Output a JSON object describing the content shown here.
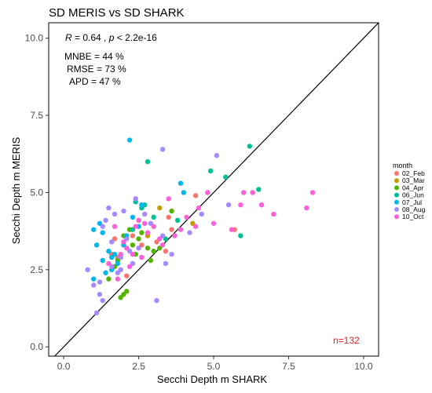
{
  "chart_data": {
    "type": "scatter",
    "title": "SD MERIS vs SD SHARK",
    "xlabel": "Secchi Depth m SHARK",
    "ylabel": "Secchi Depth m MERIS",
    "xlim": [
      -0.5,
      10.5
    ],
    "ylim": [
      -0.3,
      10.5
    ],
    "x_ticks": [
      0.0,
      2.5,
      5.0,
      7.5,
      10.0
    ],
    "x_tick_labels": [
      "0.0",
      "2.5",
      "5.0",
      "7.5",
      "10.0"
    ],
    "y_ticks": [
      0.0,
      2.5,
      5.0,
      7.5,
      10.0
    ],
    "y_tick_labels": [
      "0.0",
      "2.5",
      "5.0",
      "7.5",
      "10.0"
    ],
    "grid": false,
    "identity_line": true,
    "annotations": {
      "r_prefix": "R",
      "r_suffix": " = 0.64 , ",
      "p_prefix": "p",
      "p_suffix": " < 2.2e-16",
      "mnbe": "MNBE = 44 %",
      "rmse": "RMSE = 73 %",
      "apd": "APD = 47 %",
      "n": "n=132",
      "n_color": "#e41a1c"
    },
    "legend": {
      "title": "month",
      "placement": "right"
    },
    "series": [
      {
        "name": "02_Feb",
        "color": "#F8766D",
        "points": [
          [
            1.6,
            3.0
          ],
          [
            1.8,
            2.9
          ],
          [
            2.1,
            2.3
          ],
          [
            2.6,
            3.3
          ],
          [
            3.1,
            3.4
          ],
          [
            3.5,
            4.2
          ],
          [
            3.6,
            3.8
          ],
          [
            4.4,
            4.9
          ],
          [
            5.7,
            3.8
          ],
          [
            2.3,
            3.6
          ],
          [
            1.7,
            3.5
          ],
          [
            3.4,
            3.1
          ]
        ]
      },
      {
        "name": "03_Mar",
        "color": "#C49A00",
        "points": [
          [
            2.8,
            3.6
          ],
          [
            4.3,
            4.0
          ],
          [
            3.2,
            4.5
          ],
          [
            2.5,
            4.1
          ],
          [
            2.0,
            3.3
          ]
        ]
      },
      {
        "name": "04_Apr",
        "color": "#53B400",
        "points": [
          [
            1.5,
            2.2
          ],
          [
            1.8,
            2.8
          ],
          [
            2.0,
            3.6
          ],
          [
            2.2,
            3.8
          ],
          [
            2.4,
            3.0
          ],
          [
            2.6,
            3.7
          ],
          [
            2.8,
            3.2
          ],
          [
            3.0,
            3.1
          ],
          [
            3.2,
            3.2
          ],
          [
            3.6,
            4.4
          ],
          [
            1.9,
            1.6
          ],
          [
            2.0,
            1.7
          ],
          [
            2.1,
            1.8
          ],
          [
            2.3,
            3.3
          ],
          [
            2.5,
            3.5
          ],
          [
            1.7,
            2.6
          ],
          [
            2.9,
            2.8
          ]
        ]
      },
      {
        "name": "06_Jun",
        "color": "#00C094",
        "points": [
          [
            2.7,
            4.6
          ],
          [
            2.8,
            6.0
          ],
          [
            3.8,
            4.1
          ],
          [
            4.9,
            5.7
          ],
          [
            5.9,
            3.6
          ],
          [
            6.5,
            5.1
          ],
          [
            6.2,
            6.5
          ],
          [
            2.4,
            4.7
          ],
          [
            2.6,
            4.5
          ],
          [
            3.0,
            4.2
          ],
          [
            5.4,
            5.5
          ],
          [
            2.3,
            3.8
          ],
          [
            3.4,
            3.5
          ]
        ]
      },
      {
        "name": "07_Jul",
        "color": "#00B6EB",
        "points": [
          [
            1.0,
            3.8
          ],
          [
            1.1,
            3.3
          ],
          [
            1.3,
            2.8
          ],
          [
            1.5,
            3.1
          ],
          [
            1.6,
            2.9
          ],
          [
            1.8,
            2.7
          ],
          [
            2.0,
            3.3
          ],
          [
            2.2,
            6.7
          ],
          [
            2.3,
            4.2
          ],
          [
            2.5,
            3.9
          ],
          [
            3.9,
            5.3
          ],
          [
            1.2,
            4.0
          ],
          [
            1.4,
            2.4
          ],
          [
            1.9,
            2.9
          ],
          [
            1.0,
            2.2
          ],
          [
            2.1,
            3.6
          ],
          [
            1.3,
            3.7
          ],
          [
            1.7,
            3.0
          ],
          [
            4.0,
            5.0
          ],
          [
            2.6,
            4.6
          ],
          [
            1.6,
            2.5
          ]
        ]
      },
      {
        "name": "08_Aug",
        "color": "#A58AFF",
        "points": [
          [
            0.8,
            2.5
          ],
          [
            1.0,
            2.0
          ],
          [
            1.1,
            1.1
          ],
          [
            1.2,
            1.7
          ],
          [
            1.3,
            1.5
          ],
          [
            1.4,
            4.1
          ],
          [
            1.5,
            4.5
          ],
          [
            1.6,
            2.6
          ],
          [
            1.7,
            4.3
          ],
          [
            1.8,
            2.4
          ],
          [
            1.9,
            2.9
          ],
          [
            2.0,
            4.4
          ],
          [
            2.1,
            3.5
          ],
          [
            2.2,
            3.1
          ],
          [
            2.4,
            4.8
          ],
          [
            2.5,
            3.2
          ],
          [
            2.7,
            4.3
          ],
          [
            3.1,
            1.5
          ],
          [
            3.3,
            6.4
          ],
          [
            3.4,
            2.7
          ],
          [
            3.6,
            3.0
          ],
          [
            4.2,
            3.7
          ],
          [
            5.1,
            6.2
          ],
          [
            5.5,
            4.6
          ],
          [
            1.3,
            3.9
          ],
          [
            1.9,
            2.5
          ],
          [
            2.9,
            4.0
          ],
          [
            3.3,
            3.6
          ],
          [
            1.2,
            2.1
          ],
          [
            1.6,
            3.4
          ],
          [
            2.3,
            2.7
          ],
          [
            4.6,
            4.3
          ]
        ]
      },
      {
        "name": "10_Oct",
        "color": "#FB61D7",
        "points": [
          [
            1.7,
            3.9
          ],
          [
            2.0,
            3.4
          ],
          [
            2.2,
            2.6
          ],
          [
            2.4,
            3.9
          ],
          [
            2.6,
            2.9
          ],
          [
            2.8,
            3.7
          ],
          [
            3.0,
            3.9
          ],
          [
            3.2,
            3.5
          ],
          [
            3.5,
            4.8
          ],
          [
            4.1,
            4.2
          ],
          [
            4.5,
            4.5
          ],
          [
            4.8,
            5.0
          ],
          [
            5.6,
            3.8
          ],
          [
            5.9,
            4.6
          ],
          [
            6.3,
            5.0
          ],
          [
            6.6,
            4.6
          ],
          [
            7.0,
            4.3
          ],
          [
            8.1,
            4.5
          ],
          [
            8.3,
            5.0
          ],
          [
            3.9,
            3.8
          ],
          [
            1.5,
            2.7
          ],
          [
            2.3,
            3.0
          ],
          [
            2.7,
            4.0
          ],
          [
            3.3,
            3.3
          ],
          [
            4.4,
            3.9
          ],
          [
            6.0,
            5.0
          ],
          [
            1.8,
            2.2
          ],
          [
            2.5,
            4.1
          ],
          [
            3.7,
            3.6
          ],
          [
            1.9,
            3.0
          ],
          [
            5.0,
            4.0
          ],
          [
            2.1,
            3.2
          ]
        ]
      }
    ]
  }
}
